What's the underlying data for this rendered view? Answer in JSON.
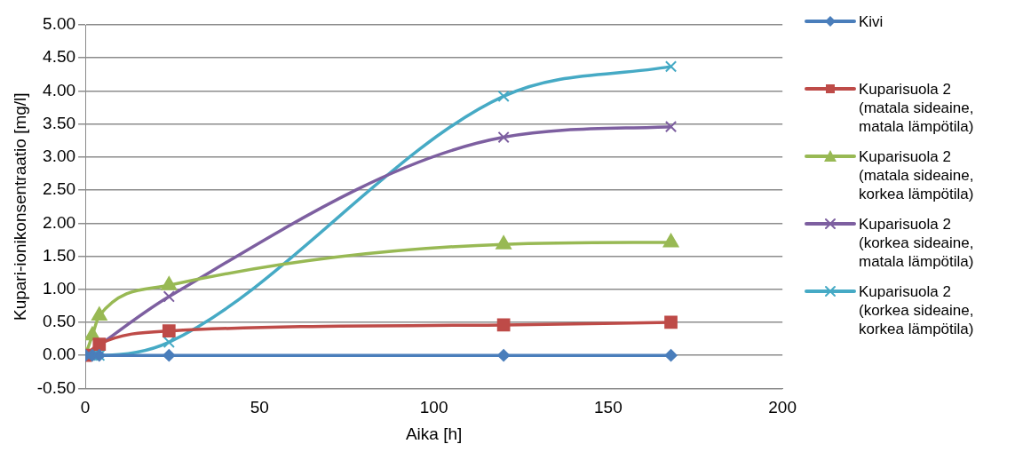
{
  "chart_data": {
    "type": "line",
    "xlabel": "Aika [h]",
    "ylabel": "Kupari-ionikonsentraatio [mg/l]",
    "x": [
      0,
      2,
      4,
      24,
      120,
      168
    ],
    "series": [
      {
        "name": "Kivi",
        "color": "#4a7ebb",
        "marker": "diamond",
        "values": [
          0,
          0,
          0,
          0,
          0,
          0
        ]
      },
      {
        "name": "Kuparisuola 2 (matala sideaine, matala lämpötila)",
        "color": "#be4b48",
        "marker": "square",
        "values": [
          0,
          null,
          0.17,
          0.37,
          0.46,
          0.5
        ]
      },
      {
        "name": "Kuparisuola 2 (matala sideaine, korkea lämpötila)",
        "color": "#98b954",
        "marker": "triangle",
        "values": [
          0,
          0.3,
          0.6,
          1.06,
          1.68,
          1.71
        ]
      },
      {
        "name": "Kuparisuola 2 (korkea sideaine, matala lämpötila)",
        "color": "#7d5fa0",
        "marker": "cross",
        "values": [
          0,
          null,
          null,
          0.89,
          3.3,
          3.46
        ]
      },
      {
        "name": "Kuparisuola 2 (korkea sideaine, korkea lämpötila)",
        "color": "#46aac5",
        "marker": "cross",
        "values": [
          0,
          0,
          0,
          0.2,
          3.92,
          4.37
        ]
      }
    ],
    "xlim": [
      0,
      200
    ],
    "xticks": [
      0,
      50,
      100,
      150,
      200
    ],
    "ylim": [
      -0.5,
      5
    ],
    "yticks": [
      {
        "value": -0.5,
        "label": "-0.50"
      },
      {
        "value": 0,
        "label": "0.00"
      },
      {
        "value": 0.5,
        "label": "0.50"
      },
      {
        "value": 1,
        "label": "1.00"
      },
      {
        "value": 1.5,
        "label": "1.50"
      },
      {
        "value": 2,
        "label": "2.00"
      },
      {
        "value": 2.5,
        "label": "2.50"
      },
      {
        "value": 3,
        "label": "3.00"
      },
      {
        "value": 3.5,
        "label": "3.50"
      },
      {
        "value": 4,
        "label": "4.00"
      },
      {
        "value": 4.5,
        "label": "4.50"
      },
      {
        "value": 5,
        "label": "5.00"
      }
    ],
    "grid": "y",
    "legend": "right"
  }
}
